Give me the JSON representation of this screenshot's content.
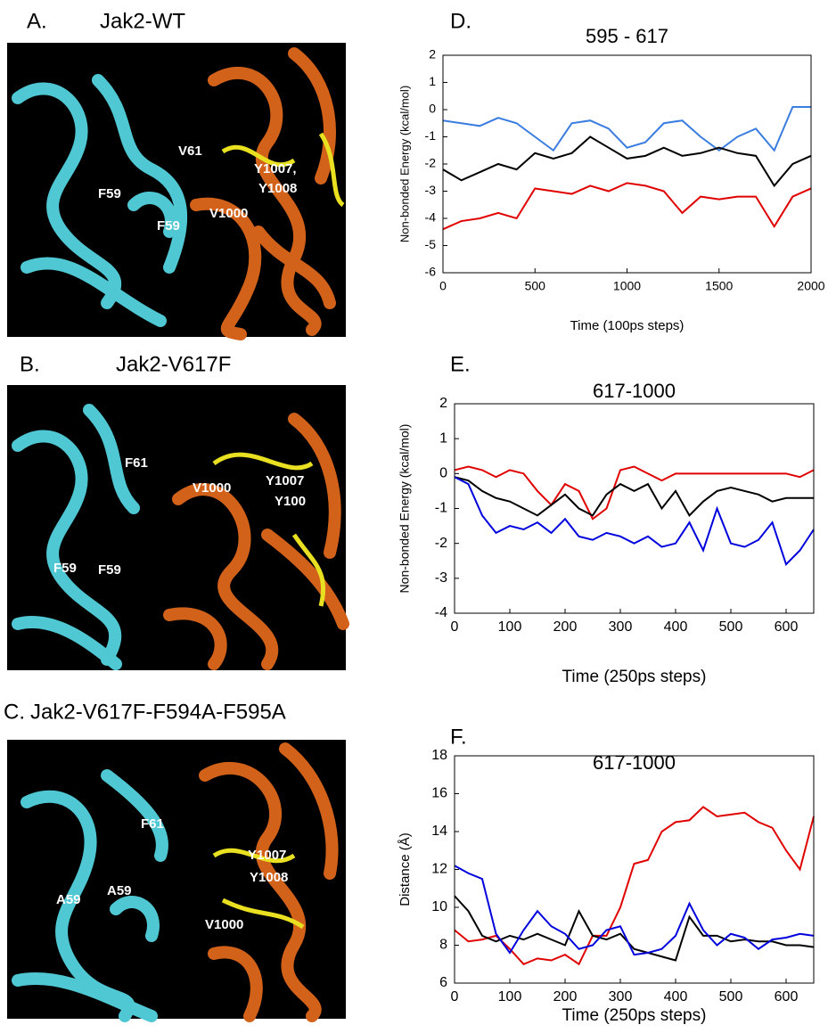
{
  "panels": [
    {
      "label": "A.",
      "title": "Jak2-WT",
      "annotations": [
        "V61",
        "Y1007,",
        "Y1008",
        "F59",
        "F59",
        "V1000"
      ]
    },
    {
      "label": "B.",
      "title": "Jak2-V617F",
      "annotations": [
        "F61",
        "V1000",
        "Y1007",
        "Y100",
        "F59",
        "F59"
      ]
    },
    {
      "label": "C.",
      "title": "Jak2-V617F-F594A-F595A",
      "annotations": [
        "F61",
        "Y1007",
        "Y1008",
        "A59",
        "A59",
        "V1000"
      ]
    }
  ],
  "chart_data": [
    {
      "type": "line",
      "panel_label": "D.",
      "title": "595 - 617",
      "x_label": "Time (100ps steps)",
      "y_label": "Non-bonded Energy   (kcal/mol)",
      "x": [
        0,
        100,
        200,
        300,
        400,
        500,
        600,
        700,
        800,
        900,
        1000,
        1100,
        1200,
        1300,
        1400,
        1500,
        1600,
        1700,
        1800,
        1900,
        2000
      ],
      "xlim": [
        0,
        2000
      ],
      "xticks": [
        0,
        500,
        1000,
        1500,
        2000
      ],
      "ylim": [
        -6,
        2
      ],
      "yticks": [
        -6,
        -5,
        -4,
        -3,
        -2,
        -1,
        0,
        1,
        2
      ],
      "series": [
        {
          "color": "#3a7de0",
          "values": [
            -0.4,
            -0.5,
            -0.6,
            -0.3,
            -0.5,
            -1.0,
            -1.5,
            -0.5,
            -0.4,
            -0.7,
            -1.4,
            -1.2,
            -0.5,
            -0.4,
            -1.0,
            -1.5,
            -1.0,
            -0.7,
            -1.5,
            0.1,
            0.1
          ]
        },
        {
          "color": "#000000",
          "values": [
            -2.2,
            -2.6,
            -2.3,
            -2.0,
            -2.2,
            -1.6,
            -1.8,
            -1.6,
            -1.0,
            -1.4,
            -1.8,
            -1.7,
            -1.4,
            -1.7,
            -1.6,
            -1.4,
            -1.6,
            -1.7,
            -2.8,
            -2.0,
            -1.7
          ]
        },
        {
          "color": "#e00000",
          "values": [
            -4.4,
            -4.1,
            -4.0,
            -3.8,
            -4.0,
            -2.9,
            -3.0,
            -3.1,
            -2.8,
            -3.0,
            -2.7,
            -2.8,
            -3.0,
            -3.8,
            -3.2,
            -3.3,
            -3.2,
            -3.2,
            -4.3,
            -3.2,
            -2.9
          ]
        }
      ]
    },
    {
      "type": "line",
      "panel_label": "E.",
      "title": "617-1000",
      "x_label": "Time (250ps steps)",
      "y_label": "Non-bonded Energy (kcal/mol)",
      "x": [
        0,
        25,
        50,
        75,
        100,
        125,
        150,
        175,
        200,
        225,
        250,
        275,
        300,
        325,
        350,
        375,
        400,
        425,
        450,
        475,
        500,
        525,
        550,
        575,
        600,
        625,
        650
      ],
      "xlim": [
        0,
        650
      ],
      "xticks": [
        0,
        100,
        200,
        300,
        400,
        500,
        600
      ],
      "ylim": [
        -4,
        2
      ],
      "yticks": [
        -4,
        -3,
        -2,
        -1,
        0,
        1,
        2
      ],
      "series": [
        {
          "color": "#e00000",
          "values": [
            0.1,
            0.2,
            0.1,
            -0.1,
            0.1,
            0.0,
            -0.5,
            -0.9,
            -0.3,
            -0.5,
            -1.3,
            -1.0,
            0.1,
            0.2,
            0.0,
            -0.2,
            0.0,
            0.0,
            0.0,
            0.0,
            0.0,
            0.0,
            0.0,
            0.0,
            0.0,
            -0.1,
            0.1
          ]
        },
        {
          "color": "#000000",
          "values": [
            -0.1,
            -0.2,
            -0.5,
            -0.7,
            -0.8,
            -1.0,
            -1.2,
            -0.9,
            -0.6,
            -1.0,
            -1.2,
            -0.6,
            -0.3,
            -0.5,
            -0.3,
            -1.0,
            -0.5,
            -1.2,
            -0.8,
            -0.5,
            -0.4,
            -0.5,
            -0.6,
            -0.8,
            -0.7,
            -0.7,
            -0.7
          ]
        },
        {
          "color": "#0000dd",
          "values": [
            -0.1,
            -0.3,
            -1.2,
            -1.7,
            -1.5,
            -1.6,
            -1.4,
            -1.7,
            -1.3,
            -1.8,
            -1.9,
            -1.7,
            -1.8,
            -2.0,
            -1.8,
            -2.1,
            -2.0,
            -1.4,
            -2.2,
            -1.0,
            -2.0,
            -2.1,
            -1.9,
            -1.4,
            -2.6,
            -2.2,
            -1.6
          ]
        }
      ]
    },
    {
      "type": "line",
      "panel_label": "F.",
      "title": "617-1000",
      "x_label": "Time (250ps steps)",
      "y_label": "Distance (Å)",
      "x": [
        0,
        25,
        50,
        75,
        100,
        125,
        150,
        175,
        200,
        225,
        250,
        275,
        300,
        325,
        350,
        375,
        400,
        425,
        450,
        475,
        500,
        525,
        550,
        575,
        600,
        625,
        650
      ],
      "xlim": [
        0,
        650
      ],
      "xticks": [
        0,
        100,
        200,
        300,
        400,
        500,
        600
      ],
      "ylim": [
        6,
        18
      ],
      "yticks": [
        6,
        8,
        10,
        12,
        14,
        16,
        18
      ],
      "series": [
        {
          "color": "#e00000",
          "values": [
            8.8,
            8.2,
            8.3,
            8.5,
            7.8,
            7.0,
            7.3,
            7.2,
            7.5,
            7.0,
            8.5,
            8.5,
            10.0,
            12.3,
            12.5,
            14.0,
            14.5,
            14.6,
            15.3,
            14.8,
            14.9,
            15.0,
            14.5,
            14.2,
            13.0,
            12.0,
            14.8
          ]
        },
        {
          "color": "#000000",
          "values": [
            10.6,
            9.8,
            8.5,
            8.2,
            8.5,
            8.3,
            8.6,
            8.3,
            8.0,
            9.8,
            8.5,
            8.3,
            8.6,
            7.8,
            7.6,
            7.4,
            7.2,
            9.5,
            8.5,
            8.5,
            8.2,
            8.3,
            8.2,
            8.2,
            8.0,
            8.0,
            7.9
          ]
        },
        {
          "color": "#0000dd",
          "values": [
            12.2,
            11.8,
            11.5,
            8.6,
            7.6,
            8.8,
            9.8,
            9.0,
            8.6,
            7.8,
            8.0,
            8.8,
            9.0,
            7.5,
            7.6,
            7.8,
            8.5,
            10.2,
            8.8,
            8.0,
            8.6,
            8.4,
            7.8,
            8.3,
            8.4,
            8.6,
            8.5
          ]
        }
      ]
    }
  ]
}
